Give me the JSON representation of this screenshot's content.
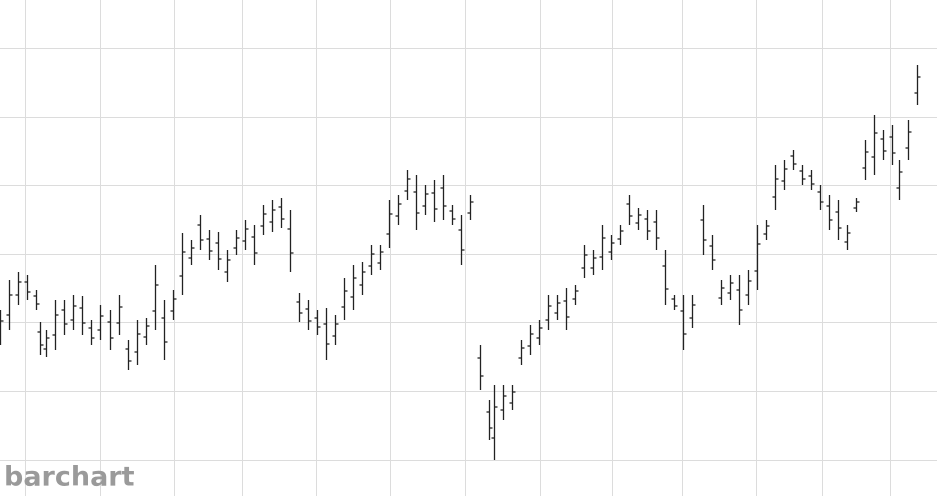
{
  "chart_data": {
    "type": "ohlc",
    "watermark": "barchart",
    "color": "#222222",
    "grid": true,
    "grid_color": "#dcdcdc",
    "xlim": [
      0,
      937
    ],
    "ylim": [
      0,
      496
    ],
    "xticks": [
      25,
      100,
      174,
      242,
      316,
      390,
      465,
      540,
      612,
      682,
      756,
      822,
      890
    ],
    "yticks": [
      448,
      379,
      311,
      242,
      174,
      105,
      36
    ],
    "x": [
      0,
      9,
      18,
      27,
      36,
      40,
      46,
      55,
      64,
      73,
      82,
      91,
      100,
      110,
      119,
      128,
      137,
      146,
      155,
      164,
      173,
      182,
      191,
      200,
      209,
      218,
      227,
      236,
      245,
      254,
      263,
      272,
      281,
      290,
      299,
      308,
      317,
      326,
      335,
      344,
      353,
      362,
      371,
      380,
      389,
      398,
      407,
      416,
      425,
      434,
      443,
      452,
      461,
      470,
      480,
      489,
      494,
      503,
      512,
      521,
      530,
      539,
      548,
      557,
      566,
      575,
      584,
      593,
      602,
      611,
      620,
      629,
      638,
      647,
      656,
      665,
      674,
      683,
      692,
      703,
      712,
      721,
      730,
      739,
      748,
      757,
      766,
      775,
      784,
      793,
      802,
      811,
      820,
      829,
      838,
      847,
      856,
      865,
      874,
      883,
      892,
      899,
      908,
      917
    ],
    "open": [
      161,
      181,
      201,
      214,
      200,
      164,
      147,
      161,
      186,
      176,
      188,
      168,
      166,
      174,
      173,
      147,
      144,
      159,
      185,
      178,
      185,
      220,
      238,
      271,
      257,
      253,
      224,
      248,
      255,
      259,
      270,
      274,
      289,
      267,
      194,
      187,
      178,
      172,
      160,
      189,
      199,
      211,
      230,
      233,
      262,
      280,
      305,
      304,
      290,
      303,
      308,
      285,
      266,
      283,
      138,
      84,
      58,
      86,
      93,
      138,
      150,
      158,
      176,
      183,
      195,
      197,
      228,
      228,
      239,
      244,
      257,
      292,
      273,
      277,
      274,
      230,
      197,
      185,
      178,
      276,
      250,
      198,
      203,
      206,
      201,
      225,
      262,
      299,
      315,
      340,
      325,
      320,
      304,
      290,
      284,
      254,
      288,
      328,
      339,
      357,
      359,
      308,
      348,
      403
    ],
    "high": [
      186,
      216,
      224,
      221,
      206,
      174,
      166,
      196,
      196,
      201,
      200,
      176,
      191,
      186,
      201,
      156,
      176,
      178,
      231,
      196,
      206,
      263,
      256,
      281,
      266,
      264,
      246,
      266,
      276,
      271,
      291,
      296,
      298,
      286,
      203,
      196,
      186,
      188,
      181,
      218,
      231,
      234,
      251,
      251,
      296,
      301,
      326,
      321,
      311,
      316,
      321,
      291,
      281,
      301,
      151,
      96,
      111,
      111,
      111,
      156,
      171,
      176,
      201,
      201,
      208,
      211,
      251,
      246,
      271,
      261,
      271,
      301,
      288,
      286,
      286,
      246,
      201,
      201,
      201,
      291,
      261,
      216,
      221,
      221,
      226,
      271,
      276,
      331,
      336,
      346,
      331,
      326,
      311,
      301,
      296,
      271,
      298,
      356,
      381,
      366,
      371,
      336,
      376,
      431
    ],
    "low": [
      151,
      166,
      191,
      196,
      186,
      141,
      139,
      146,
      161,
      166,
      161,
      151,
      156,
      146,
      161,
      126,
      131,
      151,
      166,
      136,
      176,
      201,
      231,
      246,
      236,
      226,
      214,
      241,
      246,
      231,
      261,
      264,
      268,
      224,
      174,
      166,
      161,
      136,
      151,
      176,
      186,
      201,
      221,
      226,
      248,
      271,
      296,
      266,
      281,
      274,
      276,
      271,
      231,
      276,
      106,
      56,
      36,
      76,
      86,
      131,
      141,
      151,
      166,
      176,
      166,
      191,
      218,
      221,
      226,
      236,
      251,
      271,
      266,
      256,
      246,
      191,
      186,
      146,
      168,
      241,
      226,
      191,
      196,
      171,
      191,
      206,
      256,
      286,
      306,
      326,
      311,
      306,
      286,
      266,
      256,
      246,
      284,
      316,
      321,
      336,
      331,
      296,
      336,
      391
    ],
    "close": [
      175,
      201,
      214,
      204,
      192,
      151,
      158,
      181,
      172,
      190,
      173,
      158,
      180,
      158,
      189,
      135,
      162,
      170,
      211,
      154,
      197,
      244,
      248,
      256,
      245,
      237,
      236,
      258,
      267,
      243,
      282,
      286,
      277,
      243,
      183,
      175,
      169,
      152,
      172,
      205,
      218,
      224,
      242,
      244,
      282,
      292,
      317,
      283,
      302,
      287,
      290,
      277,
      246,
      294,
      120,
      68,
      89,
      100,
      104,
      148,
      162,
      168,
      190,
      193,
      179,
      205,
      241,
      238,
      258,
      253,
      265,
      280,
      281,
      265,
      258,
      207,
      190,
      162,
      191,
      256,
      236,
      208,
      213,
      186,
      215,
      252,
      270,
      317,
      327,
      332,
      317,
      312,
      294,
      276,
      268,
      263,
      294,
      344,
      363,
      345,
      343,
      324,
      364,
      419
    ]
  }
}
